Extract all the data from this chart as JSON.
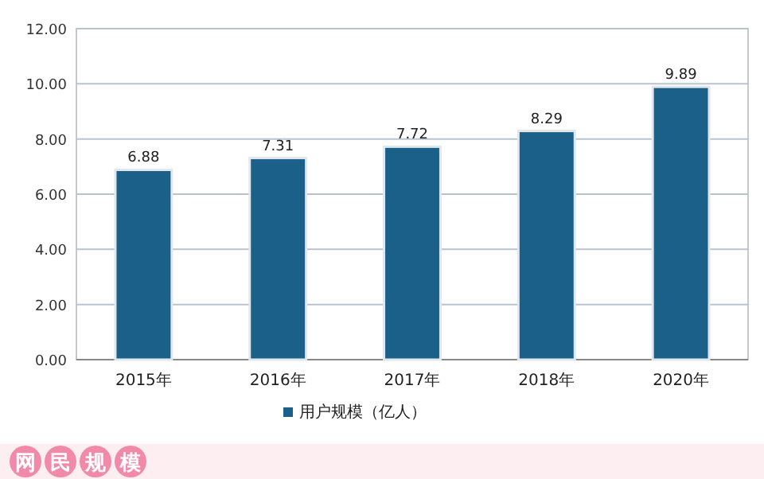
{
  "chart_data": {
    "type": "bar",
    "categories": [
      "2015年",
      "2016年",
      "2017年",
      "2018年",
      "2020年"
    ],
    "series": [
      {
        "name": "用户规模（亿人）",
        "color": "#1b6088",
        "values": [
          6.88,
          7.31,
          7.72,
          8.29,
          9.89
        ]
      }
    ],
    "value_labels": [
      "6.88",
      "7.31",
      "7.72",
      "8.29",
      "9.89"
    ],
    "ylim": [
      0,
      12
    ],
    "yticks": [
      {
        "value": 0,
        "label": "0.00"
      },
      {
        "value": 2,
        "label": "2.00"
      },
      {
        "value": 4,
        "label": "4.00"
      },
      {
        "value": 6,
        "label": "6.00"
      },
      {
        "value": 8,
        "label": "8.00"
      },
      {
        "value": 10,
        "label": "10.00"
      },
      {
        "value": 12,
        "label": "12.00"
      }
    ],
    "grid": "y",
    "legend": "bottom",
    "annotations": [
      "网民规模"
    ]
  }
}
